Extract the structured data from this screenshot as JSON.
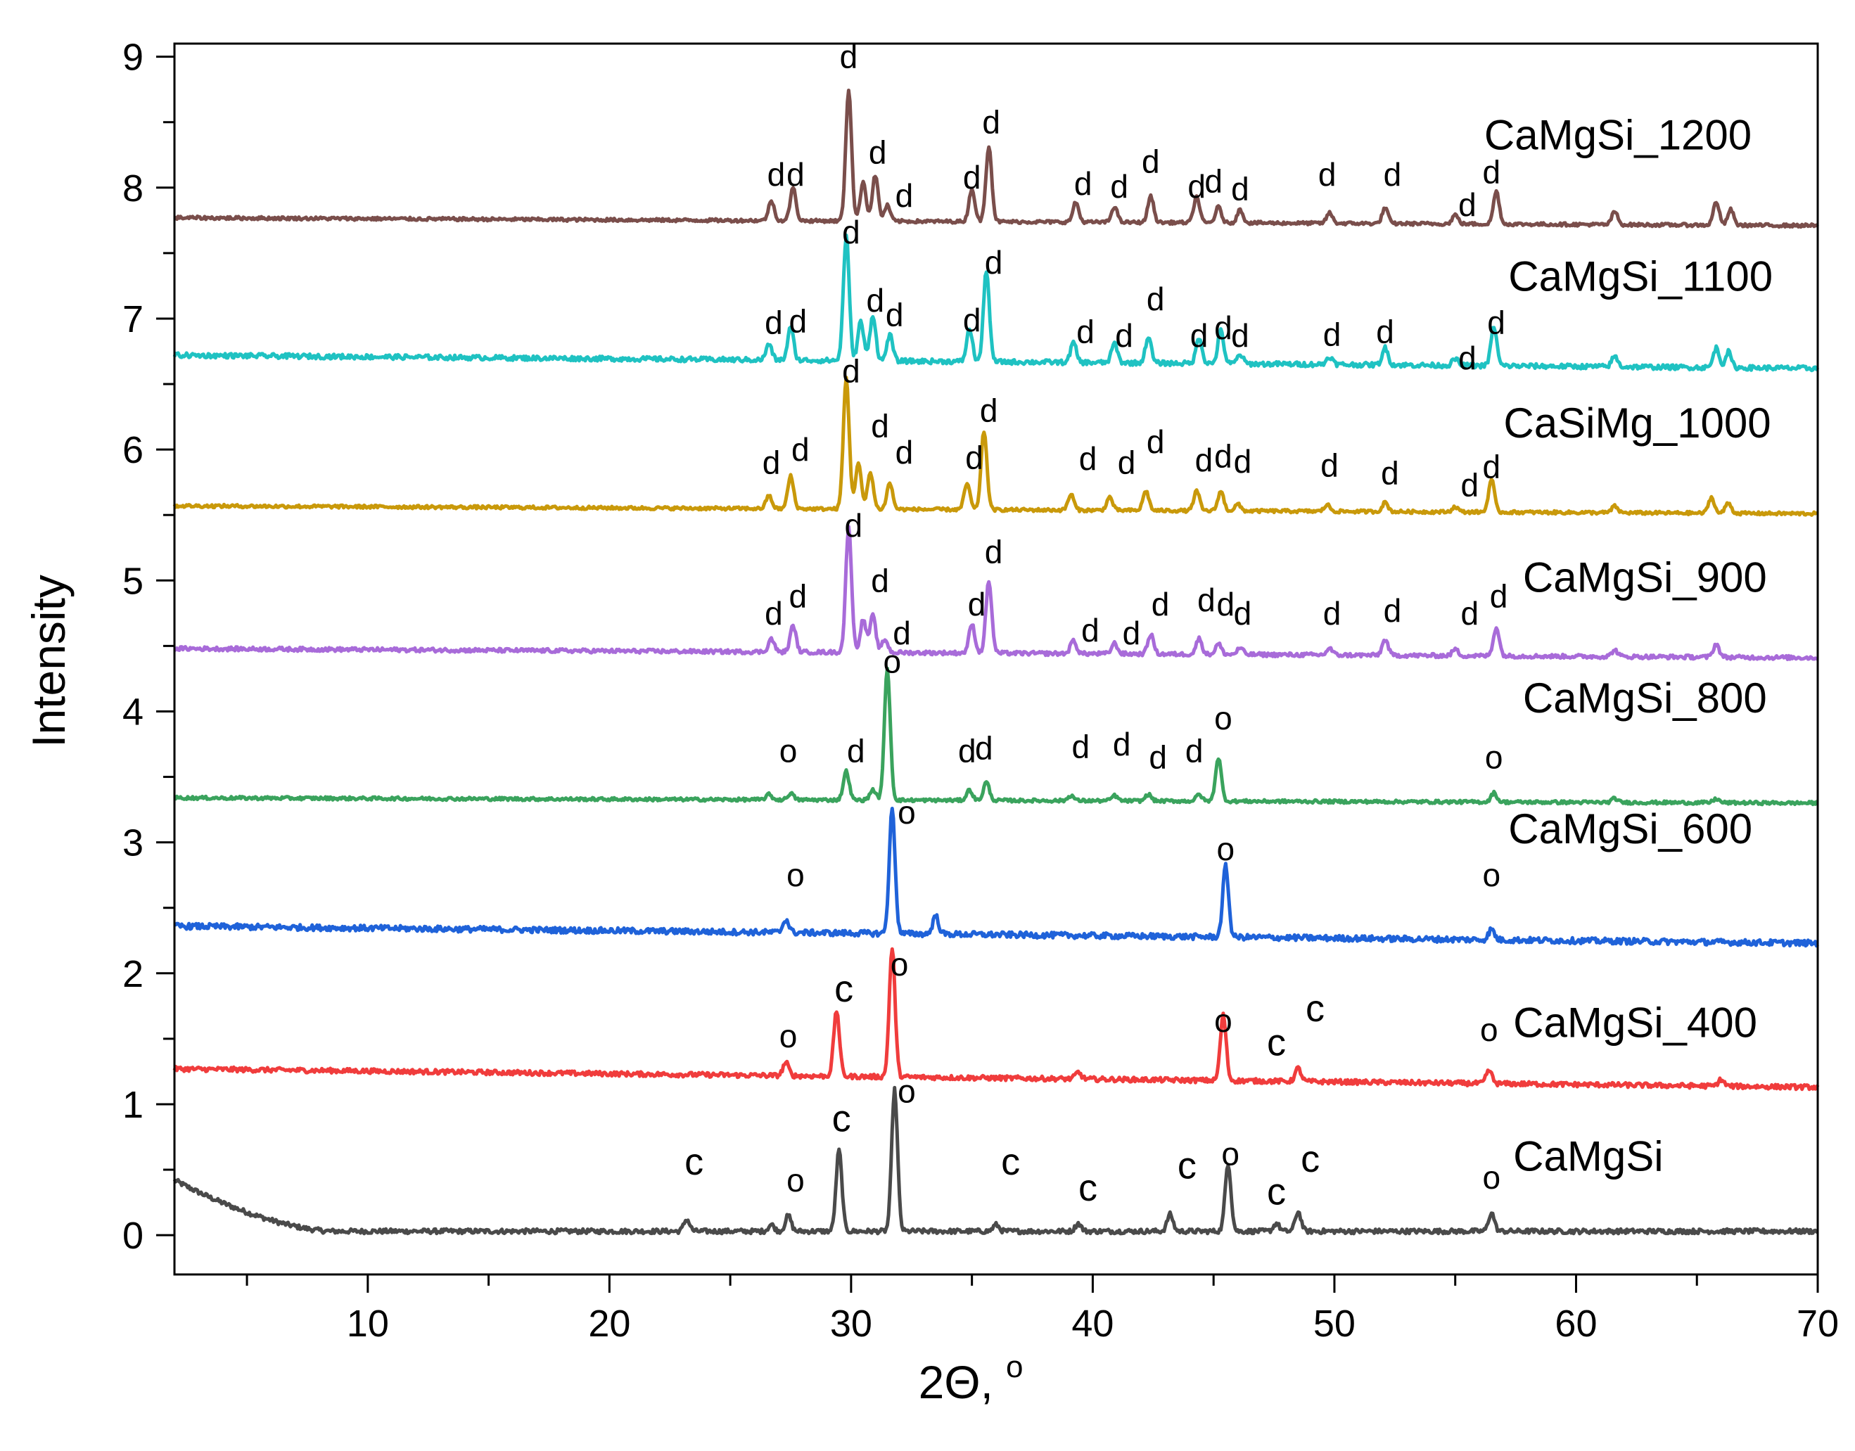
{
  "chart_data": {
    "type": "line",
    "title": "",
    "xlabel": "2Θ, °",
    "xlabel_main": "2Θ,",
    "xlabel_unit": "o",
    "ylabel": "Intensity",
    "xlim": [
      2,
      70
    ],
    "ylim": [
      -0.3,
      9.1
    ],
    "xticks": [
      10,
      20,
      30,
      40,
      50,
      60,
      70
    ],
    "yticks": [
      0,
      1,
      2,
      3,
      4,
      5,
      6,
      7,
      8,
      9
    ],
    "series": [
      {
        "name": "CaMgSi",
        "color": "#4a4a4a",
        "baseline_start": 0.42,
        "baseline_end": 0.03,
        "baseline_drop_to": 8.5,
        "noise": 0.018,
        "peaks": [
          [
            23.2,
            0.09
          ],
          [
            26.7,
            0.05
          ],
          [
            27.4,
            0.12
          ],
          [
            29.5,
            0.62
          ],
          [
            31.8,
            1.08
          ],
          [
            36.0,
            0.05
          ],
          [
            39.4,
            0.06
          ],
          [
            43.2,
            0.13
          ],
          [
            45.6,
            0.52
          ],
          [
            47.6,
            0.06
          ],
          [
            48.5,
            0.15
          ],
          [
            56.5,
            0.14
          ]
        ],
        "label": "CaMgSi",
        "label_x": 57.4,
        "label_y": 0.6,
        "marks": [
          {
            "t": "c",
            "x": 23.5,
            "y": 0.55,
            "big": true
          },
          {
            "t": "o",
            "x": 27.7,
            "y": 0.42
          },
          {
            "t": "c",
            "x": 29.6,
            "y": 0.88,
            "big": true
          },
          {
            "t": "o",
            "x": 32.3,
            "y": 1.1
          },
          {
            "t": "c",
            "x": 36.6,
            "y": 0.55,
            "big": true
          },
          {
            "t": "c",
            "x": 39.8,
            "y": 0.35,
            "big": true
          },
          {
            "t": "c",
            "x": 43.9,
            "y": 0.52,
            "big": true
          },
          {
            "t": "o",
            "x": 45.7,
            "y": 0.62
          },
          {
            "t": "c",
            "x": 47.6,
            "y": 0.32,
            "big": true
          },
          {
            "t": "c",
            "x": 49.0,
            "y": 0.57,
            "big": true
          },
          {
            "t": "o",
            "x": 56.5,
            "y": 0.44
          }
        ]
      },
      {
        "name": "CaMgSi_400",
        "color": "#f03c3c",
        "baseline_start": 1.27,
        "baseline_end": 1.13,
        "baseline_drop_to": 4,
        "noise": 0.018,
        "peaks": [
          [
            27.3,
            0.1
          ],
          [
            29.4,
            0.5
          ],
          [
            31.7,
            0.98
          ],
          [
            39.4,
            0.05
          ],
          [
            45.4,
            0.5
          ],
          [
            48.5,
            0.1
          ],
          [
            56.4,
            0.1
          ],
          [
            66.0,
            0.05
          ]
        ],
        "label": "CaMgSi_400",
        "label_x": 57.4,
        "label_y": 1.62,
        "marks": [
          {
            "t": "o",
            "x": 27.4,
            "y": 1.52
          },
          {
            "t": "c",
            "x": 29.7,
            "y": 1.87,
            "big": true
          },
          {
            "t": "o",
            "x": 32.0,
            "y": 2.07
          },
          {
            "t": "o",
            "x": 45.4,
            "y": 1.64
          },
          {
            "t": "c",
            "x": 47.6,
            "y": 1.46,
            "big": true
          },
          {
            "t": "c",
            "x": 49.2,
            "y": 1.72,
            "big": true
          },
          {
            "t": "o",
            "x": 56.4,
            "y": 1.57
          }
        ]
      },
      {
        "name": "CaMgSi_600",
        "color": "#1f62d9",
        "baseline_start": 2.36,
        "baseline_end": 2.23,
        "baseline_drop_to": 4,
        "noise": 0.022,
        "peaks": [
          [
            27.3,
            0.1
          ],
          [
            31.7,
            0.95
          ],
          [
            33.5,
            0.14
          ],
          [
            45.5,
            0.54
          ],
          [
            56.5,
            0.08
          ]
        ],
        "label": "CaMgSi_600",
        "label_x": 57.2,
        "label_y": 3.1,
        "marks": [
          {
            "t": "o",
            "x": 27.7,
            "y": 2.75
          },
          {
            "t": "o",
            "x": 32.3,
            "y": 3.23
          },
          {
            "t": "o",
            "x": 45.5,
            "y": 2.95
          },
          {
            "t": "o",
            "x": 56.5,
            "y": 2.75
          }
        ]
      },
      {
        "name": "CaMgSi_800",
        "color": "#3aa35d",
        "baseline_start": 3.34,
        "baseline_end": 3.3,
        "baseline_drop_to": 4,
        "noise": 0.012,
        "peaks": [
          [
            26.6,
            0.04
          ],
          [
            27.5,
            0.05
          ],
          [
            29.8,
            0.22
          ],
          [
            30.9,
            0.08
          ],
          [
            31.5,
            1.0
          ],
          [
            34.9,
            0.08
          ],
          [
            35.6,
            0.14
          ],
          [
            39.1,
            0.04
          ],
          [
            40.9,
            0.04
          ],
          [
            42.3,
            0.05
          ],
          [
            44.4,
            0.05
          ],
          [
            45.2,
            0.33
          ],
          [
            56.6,
            0.07
          ],
          [
            61.6,
            0.03
          ],
          [
            65.8,
            0.03
          ]
        ],
        "label": "CaMgSi_800",
        "label_x": 57.8,
        "label_y": 4.1,
        "marks": [
          {
            "t": "o",
            "x": 27.4,
            "y": 3.7
          },
          {
            "t": "d",
            "x": 30.2,
            "y": 3.7
          },
          {
            "t": "o",
            "x": 31.7,
            "y": 4.38
          },
          {
            "t": "d",
            "x": 34.8,
            "y": 3.7
          },
          {
            "t": "d",
            "x": 35.5,
            "y": 3.72
          },
          {
            "t": "d",
            "x": 39.5,
            "y": 3.73
          },
          {
            "t": "d",
            "x": 41.2,
            "y": 3.75
          },
          {
            "t": "d",
            "x": 42.7,
            "y": 3.65
          },
          {
            "t": "d",
            "x": 44.2,
            "y": 3.7
          },
          {
            "t": "o",
            "x": 45.4,
            "y": 3.95
          },
          {
            "t": "o",
            "x": 56.6,
            "y": 3.65
          }
        ]
      },
      {
        "name": "CaMgSi_900",
        "color": "#a86bd9",
        "baseline_start": 4.48,
        "baseline_end": 4.41,
        "baseline_drop_to": 4,
        "noise": 0.015,
        "peaks": [
          [
            26.7,
            0.1
          ],
          [
            27.6,
            0.2
          ],
          [
            29.9,
            0.95
          ],
          [
            30.5,
            0.25
          ],
          [
            30.9,
            0.28
          ],
          [
            31.4,
            0.1
          ],
          [
            35.0,
            0.22
          ],
          [
            35.7,
            0.55
          ],
          [
            39.2,
            0.1
          ],
          [
            40.9,
            0.08
          ],
          [
            42.4,
            0.15
          ],
          [
            44.4,
            0.12
          ],
          [
            45.2,
            0.08
          ],
          [
            46.1,
            0.05
          ],
          [
            49.8,
            0.05
          ],
          [
            52.1,
            0.12
          ],
          [
            55.0,
            0.05
          ],
          [
            56.7,
            0.22
          ],
          [
            61.6,
            0.05
          ],
          [
            65.8,
            0.1
          ]
        ],
        "label": "CaMgSi_900",
        "label_x": 57.8,
        "label_y": 5.02,
        "marks": [
          {
            "t": "d",
            "x": 26.8,
            "y": 4.75
          },
          {
            "t": "d",
            "x": 27.8,
            "y": 4.88
          },
          {
            "t": "d",
            "x": 30.1,
            "y": 5.42
          },
          {
            "t": "d",
            "x": 31.2,
            "y": 5.0
          },
          {
            "t": "d",
            "x": 32.1,
            "y": 4.6
          },
          {
            "t": "d",
            "x": 35.2,
            "y": 4.82
          },
          {
            "t": "d",
            "x": 35.9,
            "y": 5.22
          },
          {
            "t": "d",
            "x": 39.9,
            "y": 4.62
          },
          {
            "t": "d",
            "x": 41.6,
            "y": 4.6
          },
          {
            "t": "d",
            "x": 42.8,
            "y": 4.82
          },
          {
            "t": "d",
            "x": 44.7,
            "y": 4.85
          },
          {
            "t": "d",
            "x": 45.5,
            "y": 4.82
          },
          {
            "t": "d",
            "x": 46.2,
            "y": 4.75
          },
          {
            "t": "d",
            "x": 49.9,
            "y": 4.75
          },
          {
            "t": "d",
            "x": 52.4,
            "y": 4.77
          },
          {
            "t": "d",
            "x": 55.6,
            "y": 4.75
          },
          {
            "t": "d",
            "x": 56.8,
            "y": 4.88
          }
        ]
      },
      {
        "name": "CaSiMg_1000",
        "color": "#c9990a",
        "baseline_start": 5.57,
        "baseline_end": 5.51,
        "baseline_drop_to": 4,
        "noise": 0.012,
        "peaks": [
          [
            26.6,
            0.1
          ],
          [
            27.5,
            0.25
          ],
          [
            29.8,
            1.0
          ],
          [
            30.3,
            0.35
          ],
          [
            30.8,
            0.28
          ],
          [
            31.6,
            0.2
          ],
          [
            34.8,
            0.2
          ],
          [
            35.5,
            0.6
          ],
          [
            39.1,
            0.12
          ],
          [
            40.7,
            0.1
          ],
          [
            42.2,
            0.15
          ],
          [
            44.3,
            0.15
          ],
          [
            45.3,
            0.15
          ],
          [
            46.0,
            0.05
          ],
          [
            49.7,
            0.05
          ],
          [
            52.1,
            0.07
          ],
          [
            55.0,
            0.04
          ],
          [
            56.5,
            0.25
          ],
          [
            61.6,
            0.05
          ],
          [
            65.6,
            0.12
          ],
          [
            66.3,
            0.08
          ]
        ],
        "label": "CaSiMg_1000",
        "label_x": 57.0,
        "label_y": 6.2,
        "marks": [
          {
            "t": "d",
            "x": 26.7,
            "y": 5.9
          },
          {
            "t": "d",
            "x": 27.9,
            "y": 6.0
          },
          {
            "t": "d",
            "x": 30.0,
            "y": 6.6
          },
          {
            "t": "d",
            "x": 31.2,
            "y": 6.18
          },
          {
            "t": "d",
            "x": 32.2,
            "y": 5.98
          },
          {
            "t": "d",
            "x": 35.1,
            "y": 5.94
          },
          {
            "t": "d",
            "x": 35.7,
            "y": 6.3
          },
          {
            "t": "d",
            "x": 39.8,
            "y": 5.93
          },
          {
            "t": "d",
            "x": 41.4,
            "y": 5.9
          },
          {
            "t": "d",
            "x": 42.6,
            "y": 6.06
          },
          {
            "t": "d",
            "x": 44.6,
            "y": 5.92
          },
          {
            "t": "d",
            "x": 45.4,
            "y": 5.95
          },
          {
            "t": "d",
            "x": 46.2,
            "y": 5.91
          },
          {
            "t": "d",
            "x": 49.8,
            "y": 5.88
          },
          {
            "t": "d",
            "x": 52.3,
            "y": 5.82
          },
          {
            "t": "d",
            "x": 55.6,
            "y": 5.73
          },
          {
            "t": "d",
            "x": 56.5,
            "y": 5.87
          }
        ]
      },
      {
        "name": "CaMgSi_1100",
        "color": "#1fc2c2",
        "baseline_start": 6.72,
        "baseline_end": 6.62,
        "baseline_drop_to": 4,
        "noise": 0.018,
        "peaks": [
          [
            26.6,
            0.12
          ],
          [
            27.5,
            0.25
          ],
          [
            29.8,
            0.95
          ],
          [
            30.4,
            0.3
          ],
          [
            30.9,
            0.35
          ],
          [
            31.6,
            0.2
          ],
          [
            34.9,
            0.25
          ],
          [
            35.6,
            0.7
          ],
          [
            39.2,
            0.15
          ],
          [
            40.9,
            0.15
          ],
          [
            42.3,
            0.2
          ],
          [
            44.4,
            0.2
          ],
          [
            45.3,
            0.25
          ],
          [
            46.1,
            0.07
          ],
          [
            49.8,
            0.06
          ],
          [
            52.1,
            0.13
          ],
          [
            55.0,
            0.05
          ],
          [
            56.6,
            0.3
          ],
          [
            61.6,
            0.08
          ],
          [
            65.8,
            0.15
          ],
          [
            66.3,
            0.12
          ]
        ],
        "label": "CaMgSi_1100",
        "label_x": 57.2,
        "label_y": 7.32,
        "marks": [
          {
            "t": "d",
            "x": 26.8,
            "y": 6.97
          },
          {
            "t": "d",
            "x": 27.8,
            "y": 6.98
          },
          {
            "t": "d",
            "x": 30.0,
            "y": 7.66
          },
          {
            "t": "d",
            "x": 31.0,
            "y": 7.14
          },
          {
            "t": "d",
            "x": 31.8,
            "y": 7.03
          },
          {
            "t": "d",
            "x": 35.0,
            "y": 6.99
          },
          {
            "t": "d",
            "x": 35.9,
            "y": 7.43
          },
          {
            "t": "d",
            "x": 39.7,
            "y": 6.9
          },
          {
            "t": "d",
            "x": 41.3,
            "y": 6.87
          },
          {
            "t": "d",
            "x": 42.6,
            "y": 7.15
          },
          {
            "t": "d",
            "x": 44.4,
            "y": 6.87
          },
          {
            "t": "d",
            "x": 45.4,
            "y": 6.93
          },
          {
            "t": "d",
            "x": 46.1,
            "y": 6.87
          },
          {
            "t": "d",
            "x": 49.9,
            "y": 6.88
          },
          {
            "t": "d",
            "x": 52.1,
            "y": 6.9
          },
          {
            "t": "d",
            "x": 55.5,
            "y": 6.7
          },
          {
            "t": "d",
            "x": 56.7,
            "y": 6.97
          }
        ]
      },
      {
        "name": "CaMgSi_1200",
        "color": "#7a4e4b",
        "baseline_start": 7.77,
        "baseline_end": 7.71,
        "baseline_drop_to": 4,
        "noise": 0.012,
        "peaks": [
          [
            26.7,
            0.15
          ],
          [
            27.6,
            0.25
          ],
          [
            29.9,
            1.0
          ],
          [
            30.5,
            0.3
          ],
          [
            31.0,
            0.35
          ],
          [
            31.5,
            0.12
          ],
          [
            35.0,
            0.25
          ],
          [
            35.7,
            0.58
          ],
          [
            39.3,
            0.15
          ],
          [
            40.9,
            0.12
          ],
          [
            42.4,
            0.2
          ],
          [
            44.3,
            0.2
          ],
          [
            45.2,
            0.12
          ],
          [
            46.1,
            0.1
          ],
          [
            49.8,
            0.08
          ],
          [
            52.1,
            0.12
          ],
          [
            55.0,
            0.07
          ],
          [
            56.7,
            0.25
          ],
          [
            61.6,
            0.1
          ],
          [
            65.8,
            0.18
          ],
          [
            66.4,
            0.12
          ]
        ],
        "label": "CaMgSi_1200",
        "label_x": 56.2,
        "label_y": 8.4,
        "marks": [
          {
            "t": "d",
            "x": 26.9,
            "y": 8.1
          },
          {
            "t": "d",
            "x": 27.7,
            "y": 8.1
          },
          {
            "t": "d",
            "x": 29.9,
            "y": 9.0
          },
          {
            "t": "d",
            "x": 31.1,
            "y": 8.27
          },
          {
            "t": "d",
            "x": 32.2,
            "y": 7.94
          },
          {
            "t": "d",
            "x": 35.0,
            "y": 8.08
          },
          {
            "t": "d",
            "x": 35.8,
            "y": 8.5
          },
          {
            "t": "d",
            "x": 39.6,
            "y": 8.03
          },
          {
            "t": "d",
            "x": 41.1,
            "y": 8.01
          },
          {
            "t": "d",
            "x": 42.4,
            "y": 8.2
          },
          {
            "t": "d",
            "x": 44.3,
            "y": 8.01
          },
          {
            "t": "d",
            "x": 45.0,
            "y": 8.05
          },
          {
            "t": "d",
            "x": 46.1,
            "y": 7.99
          },
          {
            "t": "d",
            "x": 49.7,
            "y": 8.1
          },
          {
            "t": "d",
            "x": 52.4,
            "y": 8.1
          },
          {
            "t": "d",
            "x": 55.5,
            "y": 7.87
          },
          {
            "t": "d",
            "x": 56.5,
            "y": 8.12
          }
        ]
      }
    ]
  }
}
